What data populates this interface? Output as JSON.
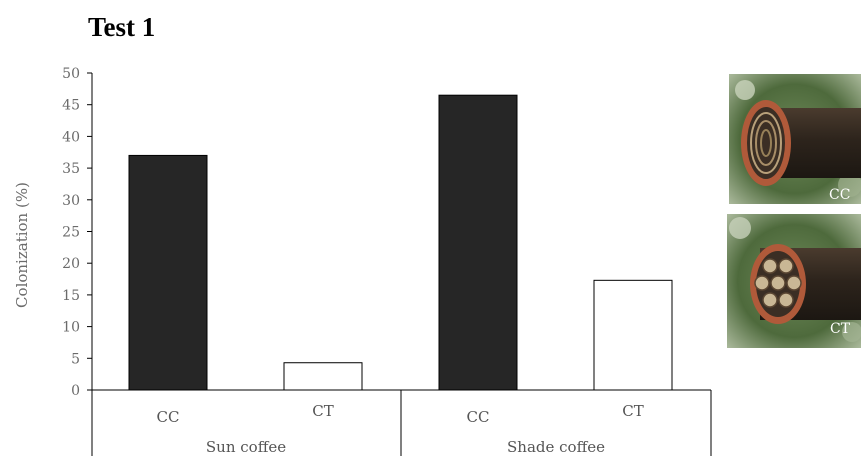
{
  "chart_data": {
    "type": "bar",
    "title": "Test 1",
    "ylabel": "Colonization (%)",
    "ylim": [
      0,
      50
    ],
    "yticks": [
      0,
      5,
      10,
      15,
      20,
      25,
      30,
      35,
      40,
      45,
      50
    ],
    "groups": [
      "Sun coffee",
      "Shade coffee"
    ],
    "categories": [
      "CC",
      "CT",
      "CC",
      "CT"
    ],
    "values": [
      37,
      4.3,
      46.5,
      17.3
    ],
    "bar_fills": [
      "#262626",
      "#ffffff",
      "#262626",
      "#ffffff"
    ],
    "grid": false
  },
  "photos": [
    {
      "label": "CC",
      "icon": "nest-tube-cc-photo"
    },
    {
      "label": "CT",
      "icon": "nest-tube-ct-photo"
    }
  ]
}
